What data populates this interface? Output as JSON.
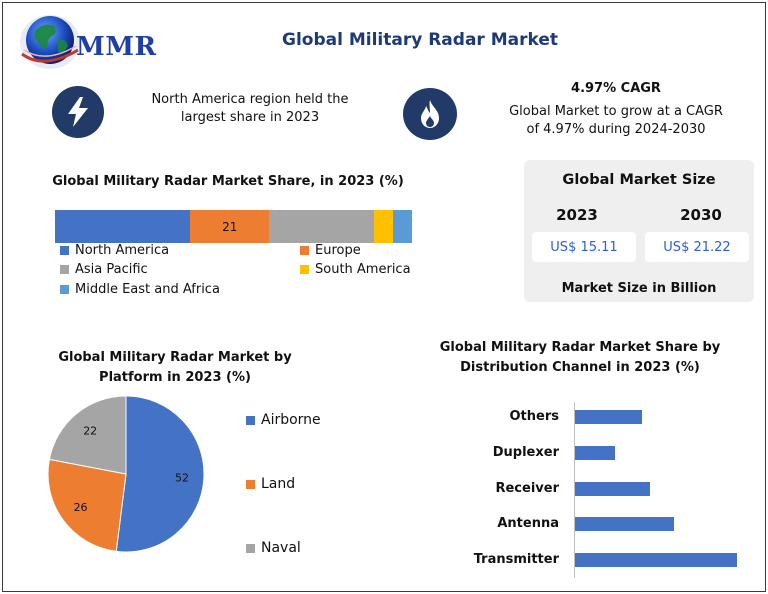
{
  "header": {
    "logo_text": "MMR",
    "title": "Global Military Radar Market"
  },
  "info": {
    "left_icon": "lightning-bolt-icon",
    "left_text_line1": "North America region held the",
    "left_text_line2": "largest share in 2023",
    "right_icon": "flame-icon",
    "cagr_title": "4.97% CAGR",
    "cagr_line1": "Global Market to grow at a CAGR",
    "cagr_line2": "of 4.97% during 2024-2030"
  },
  "market_size": {
    "title": "Global Market Size",
    "year1": "2023",
    "year2": "2030",
    "value1": "US$ 15.11",
    "value2": "US$ 21.22",
    "footer": "Market Size in Billion"
  },
  "colors": {
    "blue": "#4472c4",
    "orange": "#ed7d31",
    "gray": "#a5a5a5",
    "yellow": "#ffc000",
    "light_blue": "#5b9bd5",
    "badge": "#223a68",
    "title": "#1d3a78"
  },
  "chart_data": [
    {
      "type": "bar",
      "orientation": "horizontal-stacked-100",
      "title": "Global Military Radar Market Share, in 2023 (%)",
      "series": [
        {
          "name": "North America",
          "values": [
            36
          ],
          "label": ""
        },
        {
          "name": "Europe",
          "values": [
            21
          ],
          "label": "21"
        },
        {
          "name": "Asia Pacific",
          "values": [
            28
          ],
          "label": ""
        },
        {
          "name": "South America",
          "values": [
            5
          ],
          "label": ""
        },
        {
          "name": "Middle East and Africa",
          "values": [
            5
          ],
          "label": ""
        }
      ],
      "legend": "bottom"
    },
    {
      "type": "pie",
      "title_line1": "Global Military Radar Market by",
      "title_line2": "Platform in 2023 (%)",
      "categories": [
        "Airborne",
        "Land",
        "Naval"
      ],
      "values": [
        52,
        26,
        22
      ],
      "legend": "right"
    },
    {
      "type": "bar",
      "orientation": "horizontal",
      "title_line1": "Global Military Radar Market Share by",
      "title_line2": "Distribution  Channel in 2023 (%)",
      "categories": [
        "Others",
        "Duplexer",
        "Receiver",
        "Antenna",
        "Transmitter"
      ],
      "values": [
        17,
        10,
        19,
        25,
        41
      ],
      "xlim": [
        0,
        41
      ],
      "grid": false
    }
  ]
}
